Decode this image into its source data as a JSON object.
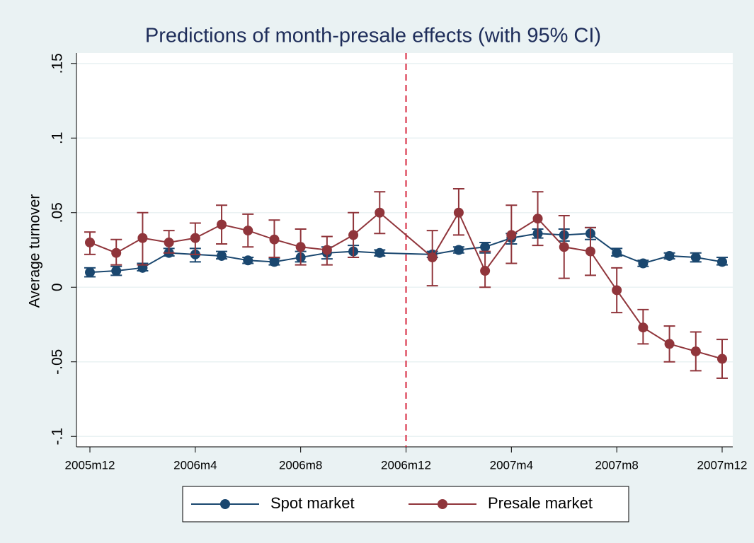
{
  "chart_data": {
    "type": "line",
    "title": "Predictions of month-presale effects (with 95% CI)",
    "y_label": "Average turnover",
    "x": [
      "2005m12",
      "2006m1",
      "2006m2",
      "2006m3",
      "2006m4",
      "2006m5",
      "2006m6",
      "2006m7",
      "2006m8",
      "2006m9",
      "2006m10",
      "2006m11",
      "2007m1",
      "2007m2",
      "2007m3",
      "2007m4",
      "2007m5",
      "2007m6",
      "2007m7",
      "2007m8",
      "2007m9",
      "2007m10",
      "2007m11",
      "2007m12"
    ],
    "xlim": [
      "2005m12",
      "2007m12"
    ],
    "xticks": [
      "2005m12",
      "2006m4",
      "2006m8",
      "2006m12",
      "2007m4",
      "2007m8",
      "2007m12"
    ],
    "ylim": [
      -0.107,
      0.157
    ],
    "yticks": [
      {
        "value": -0.1,
        "label": "-.1"
      },
      {
        "value": -0.05,
        "label": "-.05"
      },
      {
        "value": 0,
        "label": "0"
      },
      {
        "value": 0.05,
        "label": ".05"
      },
      {
        "value": 0.1,
        "label": ".1"
      },
      {
        "value": 0.15,
        "label": ".15"
      }
    ],
    "grid": true,
    "vline": {
      "x": "2006m12",
      "color": "#d7263d"
    },
    "legend": "bottom",
    "series": [
      {
        "name": "Spot market",
        "color": "#1a476f",
        "values": [
          0.01,
          0.011,
          0.013,
          0.023,
          0.022,
          0.021,
          0.018,
          0.017,
          0.02,
          0.023,
          0.024,
          0.023,
          0.022,
          0.025,
          0.027,
          0.033,
          0.036,
          0.035,
          0.036,
          0.023,
          0.016,
          0.021,
          0.02,
          0.017
        ],
        "lower": [
          0.007,
          0.008,
          0.011,
          0.021,
          0.017,
          0.019,
          0.016,
          0.015,
          0.017,
          0.019,
          0.02,
          0.021,
          0.02,
          0.023,
          0.023,
          0.029,
          0.033,
          0.031,
          0.032,
          0.021,
          0.014,
          0.019,
          0.017,
          0.015
        ],
        "upper": [
          0.013,
          0.014,
          0.016,
          0.026,
          0.026,
          0.024,
          0.02,
          0.019,
          0.024,
          0.027,
          0.028,
          0.025,
          0.024,
          0.027,
          0.03,
          0.036,
          0.039,
          0.039,
          0.04,
          0.026,
          0.018,
          0.023,
          0.023,
          0.02
        ]
      },
      {
        "name": "Presale market",
        "color": "#90353b",
        "values": [
          0.03,
          0.023,
          0.033,
          0.03,
          0.033,
          0.042,
          0.038,
          0.032,
          0.027,
          0.025,
          0.035,
          0.05,
          0.02,
          0.05,
          0.011,
          0.035,
          0.046,
          0.027,
          0.024,
          -0.002,
          -0.027,
          -0.038,
          -0.043,
          -0.048
        ],
        "lower": [
          0.022,
          0.015,
          0.015,
          0.023,
          0.022,
          0.029,
          0.027,
          0.02,
          0.015,
          0.015,
          0.02,
          0.036,
          0.001,
          0.035,
          0.0,
          0.016,
          0.028,
          0.006,
          0.008,
          -0.017,
          -0.038,
          -0.05,
          -0.056,
          -0.061
        ],
        "upper": [
          0.037,
          0.032,
          0.05,
          0.038,
          0.043,
          0.055,
          0.049,
          0.045,
          0.039,
          0.034,
          0.05,
          0.064,
          0.038,
          0.066,
          0.024,
          0.055,
          0.064,
          0.048,
          0.04,
          0.013,
          -0.015,
          -0.026,
          -0.03,
          -0.035
        ]
      }
    ]
  }
}
